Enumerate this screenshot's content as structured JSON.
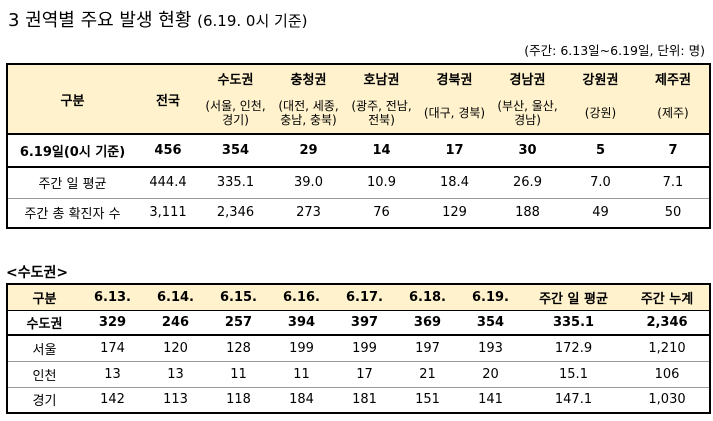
{
  "title": "3 권역별 주요 발생 현황",
  "title_sub": "(6.19. 0시 기준)",
  "note": "(주간: 6.13일~6.19일, 단위: 명)",
  "t1": {
    "h_gubun": "구분",
    "h_total": "전국",
    "regions": [
      {
        "name": "수도권",
        "sub": "(서울, 인천, 경기)"
      },
      {
        "name": "충청권",
        "sub": "(대전, 세종, 충남, 충북)"
      },
      {
        "name": "호남권",
        "sub": "(광주, 전남, 전북)"
      },
      {
        "name": "경북권",
        "sub": "(대구, 경북)"
      },
      {
        "name": "경남권",
        "sub": "(부산, 울산, 경남)"
      },
      {
        "name": "강원권",
        "sub": "(강원)"
      },
      {
        "name": "제주권",
        "sub": "(제주)"
      }
    ],
    "rows": [
      {
        "label": "6.19일(0시 기준)",
        "vals": [
          "456",
          "354",
          "29",
          "14",
          "17",
          "30",
          "5",
          "7"
        ]
      },
      {
        "label": "주간 일 평균",
        "vals": [
          "444.4",
          "335.1",
          "39.0",
          "10.9",
          "18.4",
          "26.9",
          "7.0",
          "7.1"
        ]
      },
      {
        "label": "주간 총 확진자 수",
        "vals": [
          "3,111",
          "2,346",
          "273",
          "76",
          "129",
          "188",
          "49",
          "50"
        ]
      }
    ]
  },
  "section_title": "<수도권>",
  "t2": {
    "headers": [
      "구분",
      "6.13.",
      "6.14.",
      "6.15.",
      "6.16.",
      "6.17.",
      "6.18.",
      "6.19.",
      "주간 일 평균",
      "주간 누계"
    ],
    "rows": [
      {
        "label": "수도권",
        "vals": [
          "329",
          "246",
          "257",
          "394",
          "397",
          "369",
          "354",
          "335.1",
          "2,346"
        ]
      },
      {
        "label": "서울",
        "vals": [
          "174",
          "120",
          "128",
          "199",
          "199",
          "197",
          "193",
          "172.9",
          "1,210"
        ]
      },
      {
        "label": "인천",
        "vals": [
          "13",
          "13",
          "11",
          "11",
          "17",
          "21",
          "20",
          "15.1",
          "106"
        ]
      },
      {
        "label": "경기",
        "vals": [
          "142",
          "113",
          "118",
          "184",
          "181",
          "151",
          "141",
          "147.1",
          "1,030"
        ]
      }
    ]
  }
}
